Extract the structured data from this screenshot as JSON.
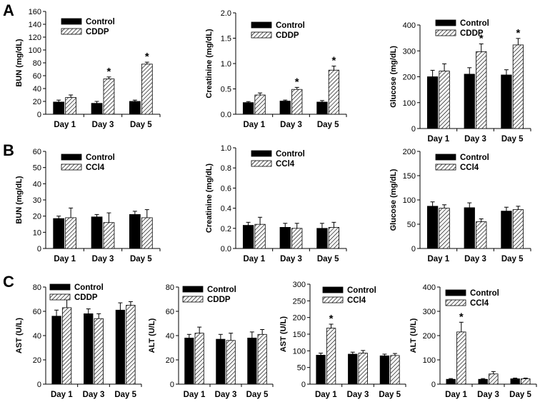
{
  "panel_letters": [
    "A",
    "B",
    "C"
  ],
  "colors": {
    "control": "#000000",
    "treated_fill": "#ffffff",
    "hatch": "#000000",
    "axis": "#000000"
  },
  "chart_data": [
    {
      "type": "bar",
      "panel": "A",
      "ylabel": "BUN (mg/dL)",
      "ylim": [
        0,
        160
      ],
      "yticks": [
        0,
        20,
        40,
        60,
        80,
        100,
        120,
        140,
        160
      ],
      "categories": [
        "Day 1",
        "Day 3",
        "Day 5"
      ],
      "series": [
        {
          "name": "Control",
          "values": [
            19,
            17,
            20
          ],
          "errors": [
            3,
            3,
            2
          ]
        },
        {
          "name": "CDDP",
          "values": [
            26,
            55,
            78
          ],
          "errors": [
            4,
            3,
            3
          ]
        }
      ],
      "significance": [
        null,
        "*",
        "*"
      ]
    },
    {
      "type": "bar",
      "panel": "A",
      "ylabel": "Creatinine (mg/dL)",
      "ylim": [
        0,
        2.0
      ],
      "yticks": [
        "0.0",
        "0.5",
        "1.0",
        "1.5",
        "2.0"
      ],
      "categories": [
        "Day 1",
        "Day 3",
        "Day 5"
      ],
      "series": [
        {
          "name": "Control",
          "values": [
            0.23,
            0.26,
            0.24
          ],
          "errors": [
            0.02,
            0.02,
            0.03
          ]
        },
        {
          "name": "CDDP",
          "values": [
            0.38,
            0.49,
            0.87
          ],
          "errors": [
            0.04,
            0.04,
            0.08
          ]
        }
      ],
      "significance": [
        null,
        "*",
        "*"
      ]
    },
    {
      "type": "bar",
      "panel": "A",
      "ylabel": "Glucose (mg/dL)",
      "ylim": [
        0,
        400
      ],
      "yticks": [
        0,
        100,
        200,
        300,
        400
      ],
      "categories": [
        "Day 1",
        "Day 3",
        "Day 5"
      ],
      "series": [
        {
          "name": "Control",
          "values": [
            200,
            210,
            207
          ],
          "errors": [
            25,
            25,
            20
          ]
        },
        {
          "name": "CDDP",
          "values": [
            222,
            297,
            323
          ],
          "errors": [
            28,
            30,
            25
          ]
        }
      ],
      "significance": [
        null,
        "*",
        "*"
      ]
    },
    {
      "type": "bar",
      "panel": "B",
      "ylabel": "BUN (mg/dL)",
      "ylim": [
        0,
        60
      ],
      "yticks": [
        0,
        10,
        20,
        30,
        40,
        50,
        60
      ],
      "categories": [
        "Day 1",
        "Day 3",
        "Day 5"
      ],
      "series": [
        {
          "name": "Control",
          "values": [
            18.5,
            19.5,
            21
          ],
          "errors": [
            1.5,
            1.5,
            2
          ]
        },
        {
          "name": "CCl4",
          "values": [
            19,
            16,
            19
          ],
          "errors": [
            6,
            6,
            5
          ]
        }
      ],
      "significance": [
        null,
        null,
        null
      ]
    },
    {
      "type": "bar",
      "panel": "B",
      "ylabel": "Creatinine (mg/dL)",
      "ylim": [
        0,
        1.0
      ],
      "yticks": [
        "0.0",
        "0.2",
        "0.4",
        "0.6",
        "0.8",
        "1.0"
      ],
      "categories": [
        "Day 1",
        "Day 3",
        "Day 5"
      ],
      "series": [
        {
          "name": "Control",
          "values": [
            0.23,
            0.21,
            0.2
          ],
          "errors": [
            0.03,
            0.04,
            0.05
          ]
        },
        {
          "name": "CCl4",
          "values": [
            0.24,
            0.2,
            0.21
          ],
          "errors": [
            0.07,
            0.05,
            0.05
          ]
        }
      ],
      "significance": [
        null,
        null,
        null
      ]
    },
    {
      "type": "bar",
      "panel": "B",
      "ylabel": "Glucose (mg/dL)",
      "ylim": [
        0,
        200
      ],
      "yticks": [
        0,
        50,
        100,
        150,
        200
      ],
      "categories": [
        "Day 1",
        "Day 3",
        "Day 5"
      ],
      "series": [
        {
          "name": "Control",
          "values": [
            87,
            84,
            77
          ],
          "errors": [
            9,
            10,
            8
          ]
        },
        {
          "name": "CCl4",
          "values": [
            83,
            55,
            80
          ],
          "errors": [
            7,
            6,
            7
          ]
        }
      ],
      "significance": [
        null,
        null,
        null
      ]
    },
    {
      "type": "bar",
      "panel": "C",
      "ylabel": "AST (U/L)",
      "ylim": [
        0,
        80
      ],
      "yticks": [
        0,
        20,
        40,
        60,
        80
      ],
      "categories": [
        "Day 1",
        "Day 3",
        "Day 5"
      ],
      "series": [
        {
          "name": "Control",
          "values": [
            56,
            58,
            61
          ],
          "errors": [
            5,
            4,
            6
          ]
        },
        {
          "name": "CDDP",
          "values": [
            63,
            54,
            65
          ],
          "errors": [
            10,
            4,
            3
          ]
        }
      ],
      "significance": [
        null,
        null,
        null
      ]
    },
    {
      "type": "bar",
      "panel": "C",
      "ylabel": "ALT (U/L)",
      "ylim": [
        0,
        80
      ],
      "yticks": [
        0,
        20,
        40,
        60,
        80
      ],
      "categories": [
        "Day 1",
        "Day 3",
        "Day 5"
      ],
      "series": [
        {
          "name": "Control",
          "values": [
            38,
            37,
            38
          ],
          "errors": [
            3,
            4,
            5
          ]
        },
        {
          "name": "CDDP",
          "values": [
            42,
            36,
            41
          ],
          "errors": [
            5,
            6,
            4
          ]
        }
      ],
      "significance": [
        null,
        null,
        null
      ]
    },
    {
      "type": "bar",
      "panel": "C",
      "ylabel": "AST (U/L)",
      "ylim": [
        0,
        300
      ],
      "yticks": [
        0,
        50,
        100,
        150,
        200,
        250,
        300
      ],
      "categories": [
        "Day 1",
        "Day 3",
        "Day 5"
      ],
      "series": [
        {
          "name": "Control",
          "values": [
            87,
            90,
            85
          ],
          "errors": [
            6,
            6,
            5
          ]
        },
        {
          "name": "CCl4",
          "values": [
            168,
            93,
            86
          ],
          "errors": [
            12,
            8,
            6
          ]
        }
      ],
      "significance": [
        "*",
        null,
        null
      ]
    },
    {
      "type": "bar",
      "panel": "C",
      "ylabel": "ALT (U/L)",
      "ylim": [
        0,
        400
      ],
      "yticks": [
        0,
        100,
        200,
        300,
        400
      ],
      "categories": [
        "Day 1",
        "Day 3",
        "Day 5"
      ],
      "series": [
        {
          "name": "Control",
          "values": [
            20,
            20,
            22
          ],
          "errors": [
            3,
            3,
            3
          ]
        },
        {
          "name": "CCl4",
          "values": [
            215,
            42,
            22
          ],
          "errors": [
            40,
            10,
            3
          ]
        }
      ],
      "significance": [
        "*",
        null,
        null
      ]
    }
  ]
}
